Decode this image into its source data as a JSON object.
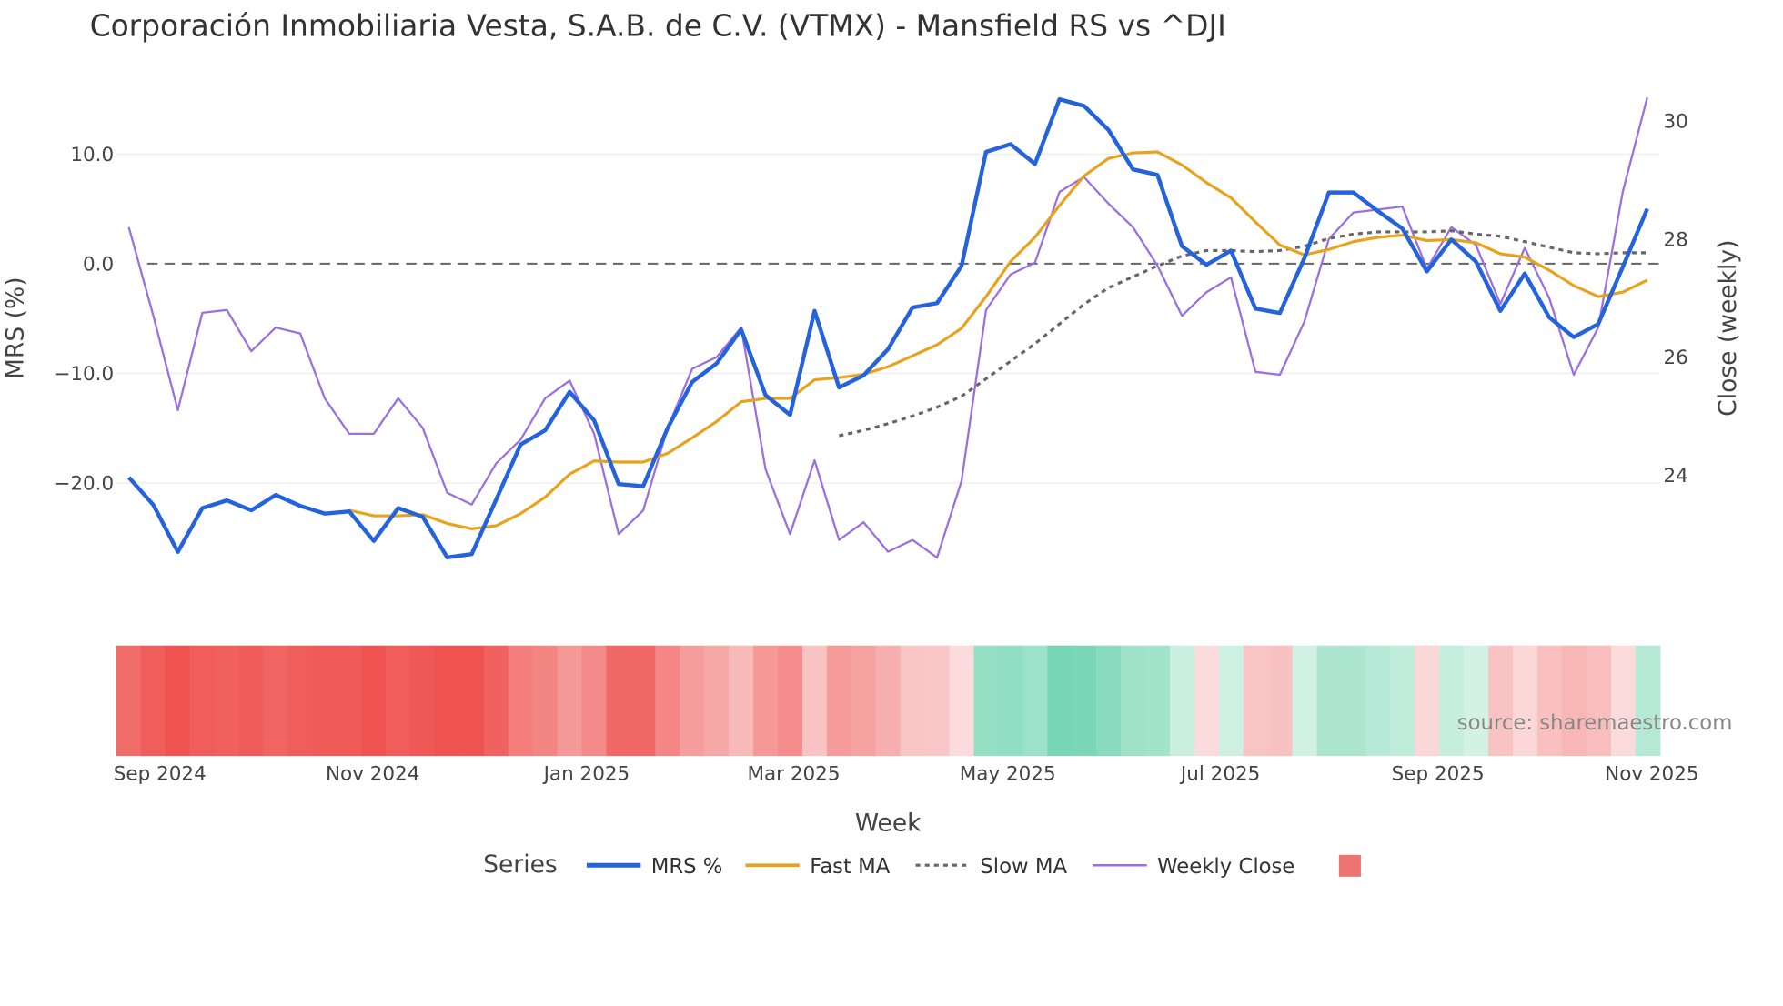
{
  "chart_data": {
    "type": "line",
    "title": "Corporación Inmobiliaria Vesta, S.A.B. de C.V. (VTMX) - Mansfield RS vs ^DJI",
    "xlabel": "Week",
    "ylabel": "MRS (%)",
    "y2label": "Close (weekly)",
    "x_tick_labels": [
      "Sep 2024",
      "Nov 2024",
      "Jan 2025",
      "Mar 2025",
      "May 2025",
      "Jul 2025",
      "Sep 2025",
      "Nov 2025"
    ],
    "y_tick_labels": [
      "10.0",
      "0.0",
      "−10.0",
      "−20.0"
    ],
    "y_ticks": [
      10,
      0,
      -10,
      -20
    ],
    "y2_tick_labels": [
      "30",
      "28",
      "26",
      "24"
    ],
    "y2_ticks": [
      30,
      28,
      26,
      24
    ],
    "grid": true,
    "zero_line": "dashed",
    "legend_title": "Series",
    "legend_placement": "bottom",
    "source": "source: sharemaestro.com",
    "colors": {
      "mrs": "#2563dd",
      "fast": "#e8a21c",
      "slow": "#666666",
      "close": "#9c6fe0",
      "neg": "#ef5350",
      "pos": "#77d6b6"
    },
    "series": [
      {
        "name": "MRS %",
        "axis": "left",
        "start_index": 0,
        "values": [
          -19.5,
          -22,
          -26.3,
          -22.3,
          -21.6,
          -22.5,
          -21.1,
          -22.1,
          -22.8,
          -22.6,
          -25.3,
          -22.3,
          -23.1,
          -26.8,
          -26.5,
          -21.5,
          -16.5,
          -15.2,
          -11.7,
          -14.3,
          -20.1,
          -20.3,
          -15,
          -10.8,
          -9.1,
          -6,
          -12,
          -13.8,
          -4.3,
          -11.3,
          -10.2,
          -7.8,
          -4,
          -3.6,
          -0.2,
          10.2,
          10.9,
          9.1,
          15,
          14.4,
          12.2,
          8.6,
          8.1,
          1.6,
          -0.1,
          1.2,
          -4.1,
          -4.5,
          0.5,
          6.5,
          6.5,
          4.8,
          3.2,
          -0.7,
          2.2,
          0.2,
          -4.3,
          -0.9,
          -4.9,
          -6.7,
          -5.5,
          -0.3,
          5.0
        ]
      },
      {
        "name": "Fast MA",
        "axis": "left",
        "start_index": 9,
        "values": [
          -22.5,
          -23,
          -23,
          -22.9,
          -23.7,
          -24.2,
          -23.9,
          -22.8,
          -21.3,
          -19.2,
          -18,
          -18.1,
          -18.1,
          -17.3,
          -15.9,
          -14.4,
          -12.6,
          -12.3,
          -12.3,
          -10.6,
          -10.4,
          -10.1,
          -9.4,
          -8.4,
          -7.4,
          -5.9,
          -3,
          0.2,
          2.4,
          5.3,
          8.0,
          9.6,
          10.1,
          10.2,
          9,
          7.4,
          6,
          3.8,
          1.7,
          0.8,
          1.3,
          2,
          2.4,
          2.6,
          2.1,
          2.2,
          1.9,
          0.9,
          0.6,
          -0.6,
          -2,
          -3,
          -2.6,
          -1.5
        ]
      },
      {
        "name": "Slow MA",
        "axis": "left",
        "start_index": 29,
        "values": [
          -15.7,
          -15.2,
          -14.6,
          -13.9,
          -13.1,
          -12.1,
          -10.5,
          -8.9,
          -7.3,
          -5.5,
          -3.7,
          -2.2,
          -1.2,
          -0.2,
          0.7,
          1.2,
          1.2,
          1.1,
          1.2,
          1.6,
          2.3,
          2.7,
          2.9,
          2.9,
          2.9,
          3.0,
          2.7,
          2.5,
          2.0,
          1.5,
          1.0,
          0.9,
          1.0,
          1.0
        ]
      },
      {
        "name": "Weekly Close",
        "axis": "right",
        "start_index": 0,
        "values": [
          28.2,
          26.7,
          25.1,
          26.75,
          26.8,
          26.1,
          26.5,
          26.4,
          25.3,
          24.7,
          24.7,
          25.3,
          24.8,
          23.7,
          23.5,
          24.2,
          24.6,
          25.3,
          25.6,
          24.7,
          23.0,
          23.4,
          24.8,
          25.8,
          26.0,
          26.5,
          24.1,
          23.0,
          24.25,
          22.9,
          23.2,
          22.7,
          22.9,
          22.6,
          23.9,
          26.8,
          27.4,
          27.6,
          28.8,
          29.05,
          28.6,
          28.2,
          27.55,
          26.7,
          27.1,
          27.35,
          25.75,
          25.7,
          26.6,
          28.0,
          28.45,
          28.5,
          28.55,
          27.5,
          28.2,
          27.9,
          26.9,
          27.85,
          27.0,
          25.7,
          26.5,
          28.8,
          30.4
        ]
      }
    ]
  }
}
